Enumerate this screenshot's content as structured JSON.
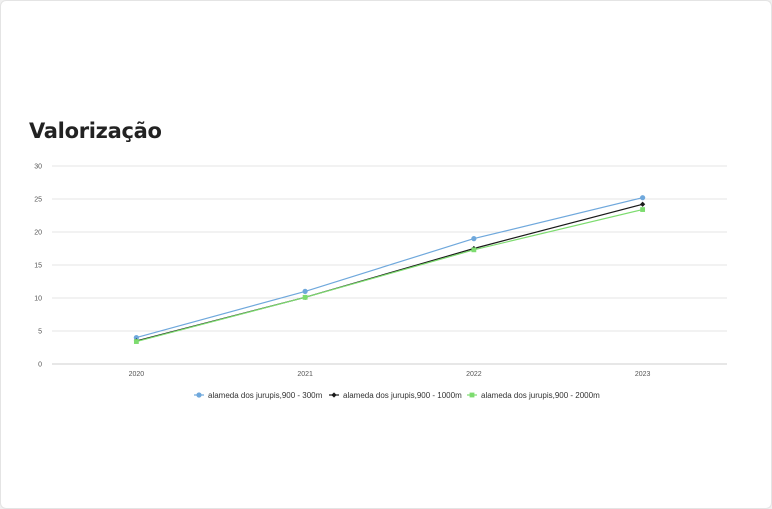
{
  "page": {
    "title": "Valorização"
  },
  "chart_data": {
    "type": "line",
    "x": [
      "2020",
      "2021",
      "2022",
      "2023"
    ],
    "ylim": [
      0,
      30
    ],
    "yticks": [
      0,
      5,
      10,
      15,
      20,
      25,
      30
    ],
    "grid": true,
    "legend_position": "bottom",
    "series": [
      {
        "name": "alameda dos jurupis,900 - 300m",
        "values": [
          4.0,
          11.0,
          19.0,
          25.2
        ],
        "color": "#6fa8dc",
        "marker": "circle"
      },
      {
        "name": "alameda dos jurupis,900 - 1000m",
        "values": [
          3.5,
          10.1,
          17.5,
          24.2
        ],
        "color": "#1a1a1a",
        "marker": "diamond"
      },
      {
        "name": "alameda dos jurupis,900 - 2000m",
        "values": [
          3.4,
          10.1,
          17.3,
          23.4
        ],
        "color": "#7ddc6f",
        "marker": "square"
      }
    ]
  }
}
